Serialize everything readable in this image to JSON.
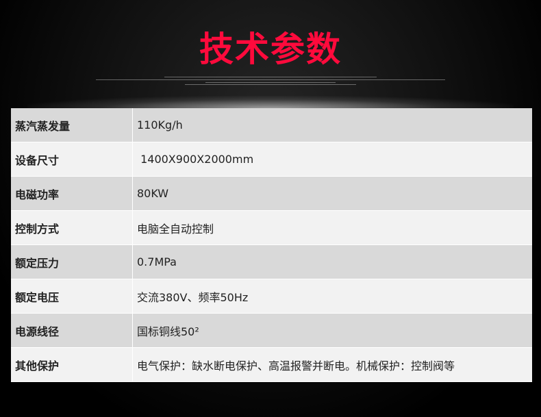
{
  "title": "技术参数",
  "colors": {
    "title": "#ff0a3c",
    "row_odd": "#d9d9d9",
    "row_even": "#f2f2f2"
  },
  "rows": [
    {
      "label": "蒸汽蒸发量",
      "value": "110Kg/h"
    },
    {
      "label": "设备尺寸",
      "value": " 1400X900X2000mm"
    },
    {
      "label": "电磁功率",
      "value": "80KW"
    },
    {
      "label": "控制方式",
      "value": "电脑全自动控制"
    },
    {
      "label": "额定压力",
      "value": "0.7MPa"
    },
    {
      "label": "额定电压",
      "value": "交流380V、频率50Hz"
    },
    {
      "label": "电源线径",
      "value": "国标铜线50²"
    },
    {
      "label": "其他保护",
      "value": "电气保护：缺水断电保护、高温报警并断电。机械保护：控制阀等"
    }
  ]
}
